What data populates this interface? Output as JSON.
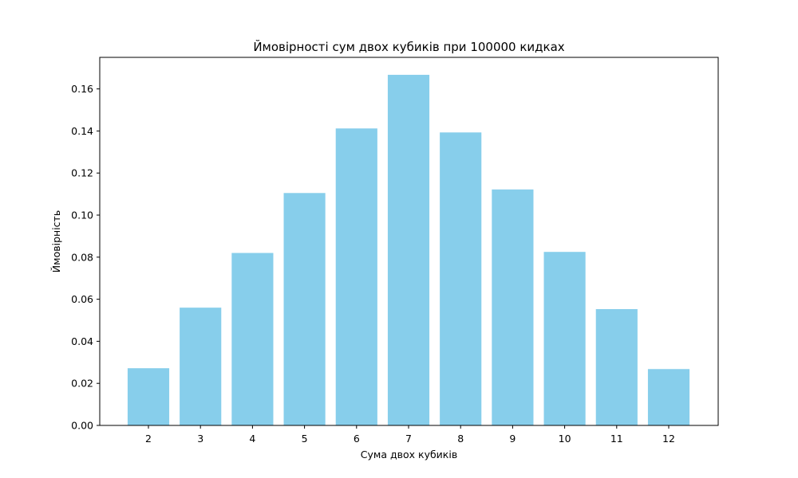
{
  "chart_data": {
    "type": "bar",
    "title": "Ймовірності сум двох кубиків при 100000 кидках",
    "xlabel": "Сума двох кубиків",
    "ylabel": "Ймовірність",
    "categories": [
      "2",
      "3",
      "4",
      "5",
      "6",
      "7",
      "8",
      "9",
      "10",
      "11",
      "12"
    ],
    "values": [
      0.0272,
      0.056,
      0.082,
      0.1105,
      0.1412,
      0.1667,
      0.1393,
      0.1122,
      0.0825,
      0.0553,
      0.0268
    ],
    "ylim": [
      0,
      0.175
    ],
    "yticks": [
      "0.00",
      "0.02",
      "0.04",
      "0.06",
      "0.08",
      "0.10",
      "0.12",
      "0.14",
      "0.16"
    ],
    "bar_color": "#87CEEB",
    "grid": false,
    "legend": "none"
  }
}
